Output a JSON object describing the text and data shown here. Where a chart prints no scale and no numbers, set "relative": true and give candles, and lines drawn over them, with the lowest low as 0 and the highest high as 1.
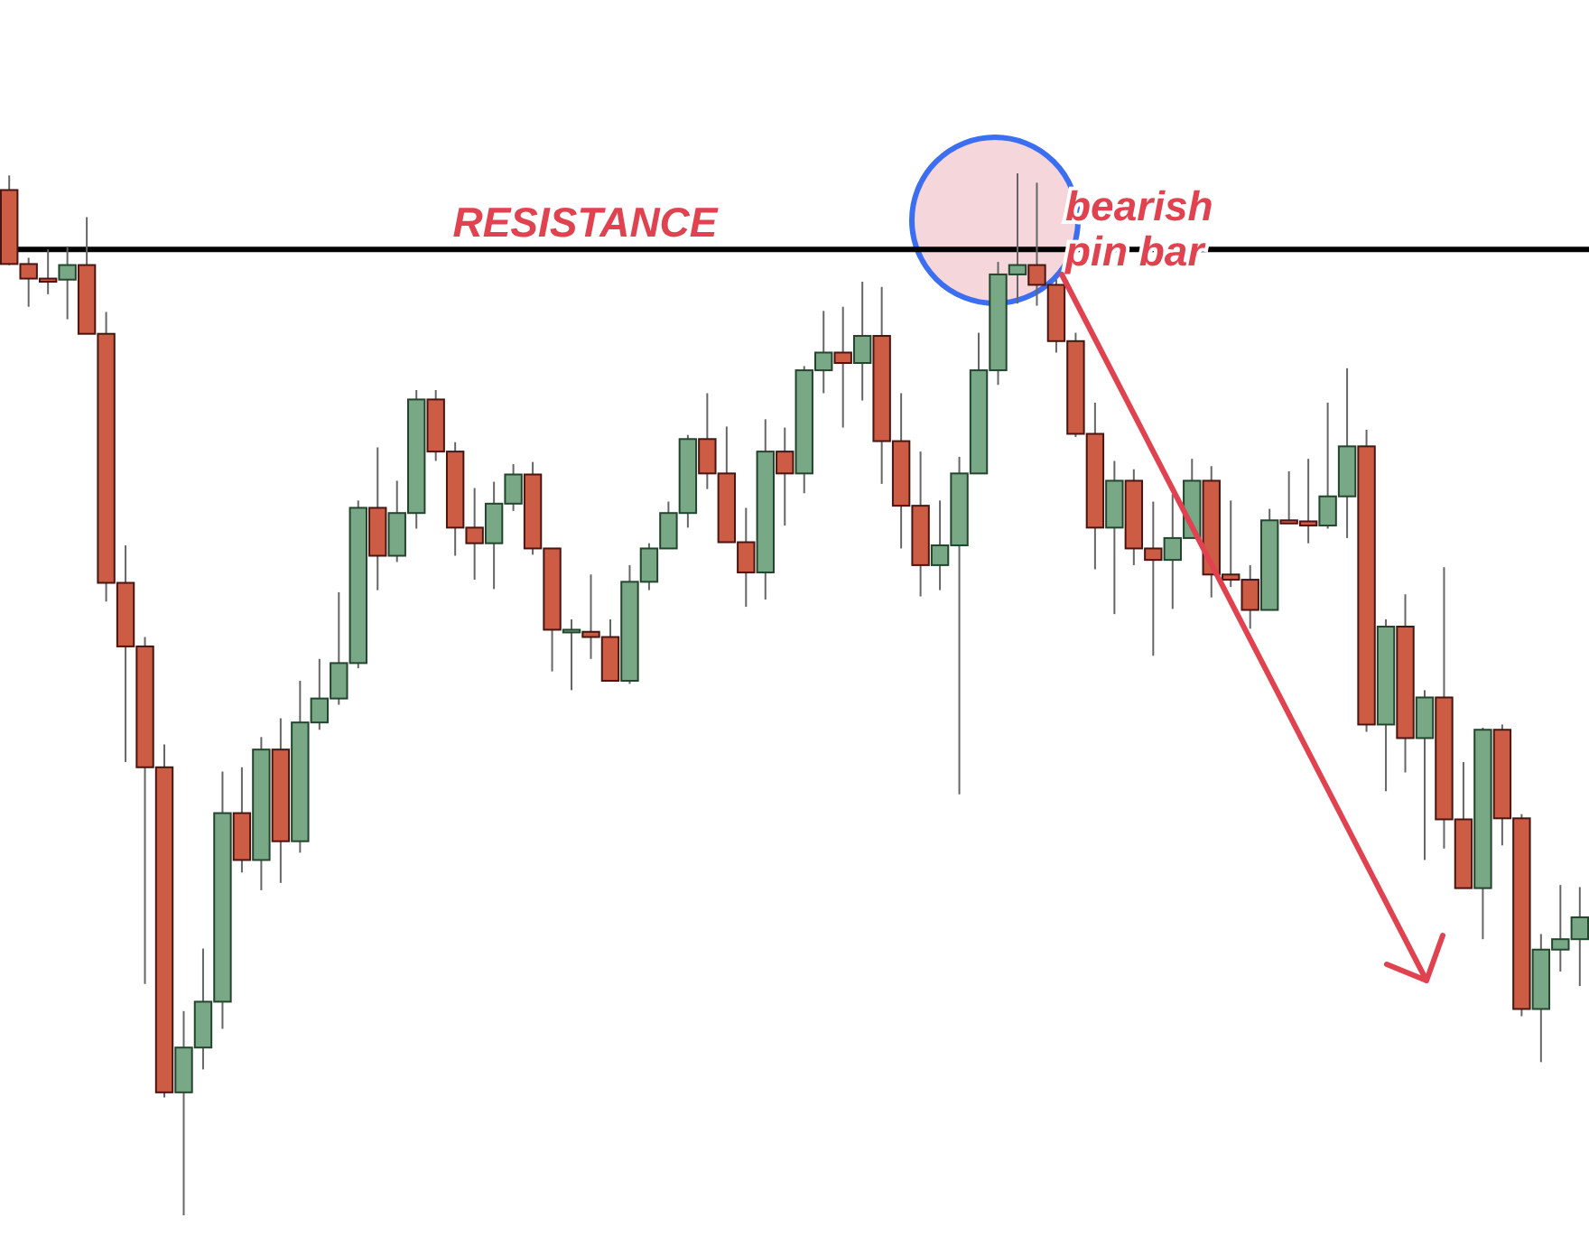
{
  "chart_data": {
    "type": "candlestick",
    "relative": true,
    "categories": [
      null,
      null,
      null,
      null,
      null,
      null,
      null,
      null,
      null,
      null,
      null,
      null,
      null,
      null,
      null,
      null,
      null,
      null,
      null,
      null,
      null,
      null,
      null,
      null,
      null,
      null,
      null,
      null,
      null,
      null,
      null,
      null,
      null,
      null,
      null,
      null,
      null,
      null,
      null,
      null,
      null,
      null,
      null,
      null,
      null,
      null,
      null,
      null,
      null,
      null,
      null,
      null,
      null,
      null,
      null,
      null,
      null,
      null,
      null,
      null,
      null,
      null,
      null,
      null,
      null,
      null,
      null,
      null,
      null,
      null,
      null,
      null,
      null,
      null,
      null,
      null,
      null,
      null,
      null,
      null,
      null,
      null
    ],
    "ohlc": [
      [
        0.984,
        0.998,
        0.912,
        0.913
      ],
      [
        0.913,
        0.919,
        0.872,
        0.899
      ],
      [
        0.899,
        0.927,
        0.884,
        0.896
      ],
      [
        0.898,
        0.929,
        0.86,
        0.912
      ],
      [
        0.912,
        0.958,
        0.846,
        0.846
      ],
      [
        0.846,
        0.867,
        0.589,
        0.607
      ],
      [
        0.607,
        0.643,
        0.435,
        0.546
      ],
      [
        0.546,
        0.555,
        0.222,
        0.43
      ],
      [
        0.43,
        0.452,
        0.113,
        0.118
      ],
      [
        0.118,
        0.196,
        0,
        0.161
      ],
      [
        0.161,
        0.256,
        0.14,
        0.205
      ],
      [
        0.205,
        0.426,
        0.179,
        0.386
      ],
      [
        0.386,
        0.43,
        0.329,
        0.341
      ],
      [
        0.341,
        0.459,
        0.312,
        0.447
      ],
      [
        0.447,
        0.477,
        0.319,
        0.359
      ],
      [
        0.359,
        0.513,
        0.348,
        0.473
      ],
      [
        0.473,
        0.534,
        0.466,
        0.496
      ],
      [
        0.496,
        0.598,
        0.49,
        0.53
      ],
      [
        0.53,
        0.686,
        0.525,
        0.679
      ],
      [
        0.679,
        0.737,
        0.6,
        0.633
      ],
      [
        0.633,
        0.705,
        0.627,
        0.674
      ],
      [
        0.674,
        0.792,
        0.659,
        0.783
      ],
      [
        0.783,
        0.792,
        0.724,
        0.733
      ],
      [
        0.733,
        0.742,
        0.633,
        0.66
      ],
      [
        0.66,
        0.698,
        0.61,
        0.645
      ],
      [
        0.645,
        0.704,
        0.601,
        0.683
      ],
      [
        0.683,
        0.721,
        0.676,
        0.711
      ],
      [
        0.711,
        0.723,
        0.634,
        0.64
      ],
      [
        0.64,
        0.64,
        0.522,
        0.562
      ],
      [
        0.56,
        0.572,
        0.504,
        0.562
      ],
      [
        0.56,
        0.615,
        0.534,
        0.555
      ],
      [
        0.555,
        0.572,
        0.513,
        0.513
      ],
      [
        0.513,
        0.624,
        0.51,
        0.608
      ],
      [
        0.608,
        0.645,
        0.6,
        0.64
      ],
      [
        0.64,
        0.685,
        0.64,
        0.674
      ],
      [
        0.674,
        0.749,
        0.66,
        0.745
      ],
      [
        0.745,
        0.789,
        0.697,
        0.712
      ],
      [
        0.712,
        0.757,
        0.646,
        0.646
      ],
      [
        0.646,
        0.679,
        0.584,
        0.617
      ],
      [
        0.617,
        0.764,
        0.591,
        0.733
      ],
      [
        0.733,
        0.756,
        0.662,
        0.712
      ],
      [
        0.712,
        0.815,
        0.693,
        0.811
      ],
      [
        0.811,
        0.868,
        0.789,
        0.828
      ],
      [
        0.828,
        0.872,
        0.756,
        0.818
      ],
      [
        0.818,
        0.896,
        0.782,
        0.844
      ],
      [
        0.844,
        0.891,
        0.702,
        0.743
      ],
      [
        0.743,
        0.789,
        0.64,
        0.681
      ],
      [
        0.681,
        0.733,
        0.594,
        0.624
      ],
      [
        0.624,
        0.686,
        0.6,
        0.643
      ],
      [
        0.643,
        0.728,
        0.404,
        0.712
      ],
      [
        0.712,
        0.847,
        0.712,
        0.811
      ],
      [
        0.811,
        0.915,
        0.797,
        0.903
      ],
      [
        0.903,
        1,
        0.875,
        0.912
      ],
      [
        0.912,
        0.991,
        0.873,
        0.893
      ],
      [
        0.893,
        0.898,
        0.828,
        0.839
      ],
      [
        0.839,
        0.847,
        0.747,
        0.75
      ],
      [
        0.75,
        0.78,
        0.62,
        0.66
      ],
      [
        0.66,
        0.724,
        0.577,
        0.705
      ],
      [
        0.705,
        0.716,
        0.624,
        0.64
      ],
      [
        0.64,
        0.685,
        0.537,
        0.629
      ],
      [
        0.629,
        0.692,
        0.582,
        0.65
      ],
      [
        0.65,
        0.726,
        0.65,
        0.705
      ],
      [
        0.705,
        0.719,
        0.593,
        0.615
      ],
      [
        0.615,
        0.686,
        0.603,
        0.61
      ],
      [
        0.61,
        0.624,
        0.563,
        0.581
      ],
      [
        0.581,
        0.678,
        0.581,
        0.667
      ],
      [
        0.667,
        0.714,
        0.664,
        0.664
      ],
      [
        0.666,
        0.726,
        0.645,
        0.662
      ],
      [
        0.662,
        0.78,
        0.659,
        0.69
      ],
      [
        0.69,
        0.813,
        0.65,
        0.738
      ],
      [
        0.738,
        0.754,
        0.464,
        0.471
      ],
      [
        0.471,
        0.572,
        0.407,
        0.565
      ],
      [
        0.565,
        0.596,
        0.425,
        0.458
      ],
      [
        0.458,
        0.504,
        0.341,
        0.497
      ],
      [
        0.497,
        0.622,
        0.352,
        0.38
      ],
      [
        0.38,
        0.435,
        0.314,
        0.314
      ],
      [
        0.314,
        0.468,
        0.265,
        0.466
      ],
      [
        0.466,
        0.471,
        0.355,
        0.381
      ],
      [
        0.381,
        0.385,
        0.191,
        0.198
      ],
      [
        0.198,
        0.27,
        0.147,
        0.255
      ],
      [
        0.255,
        0.317,
        0.234,
        0.265
      ],
      [
        0.265,
        0.315,
        0.22,
        0.286
      ]
    ],
    "ref_lines": [
      {
        "axis": "y",
        "value": 0.927,
        "label": "RESISTANCE",
        "color": "#000000"
      }
    ],
    "annotations": [
      "bearish pin bar"
    ]
  }
}
